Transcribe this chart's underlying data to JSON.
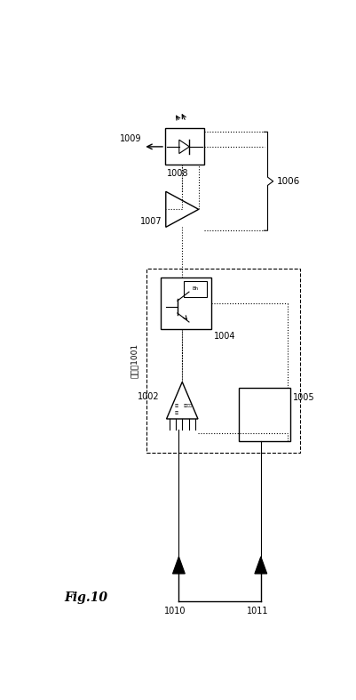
{
  "bg_color": "#ffffff",
  "black": "#000000",
  "fig_label": "Fig.10",
  "labels": {
    "1001": "遅延段1001",
    "1002": "1002",
    "1004": "1004",
    "1005": "1005",
    "1006": "1006",
    "1007": "1007",
    "1008": "1008",
    "1009": "1009",
    "1010": "1010",
    "1011": "1011"
  }
}
